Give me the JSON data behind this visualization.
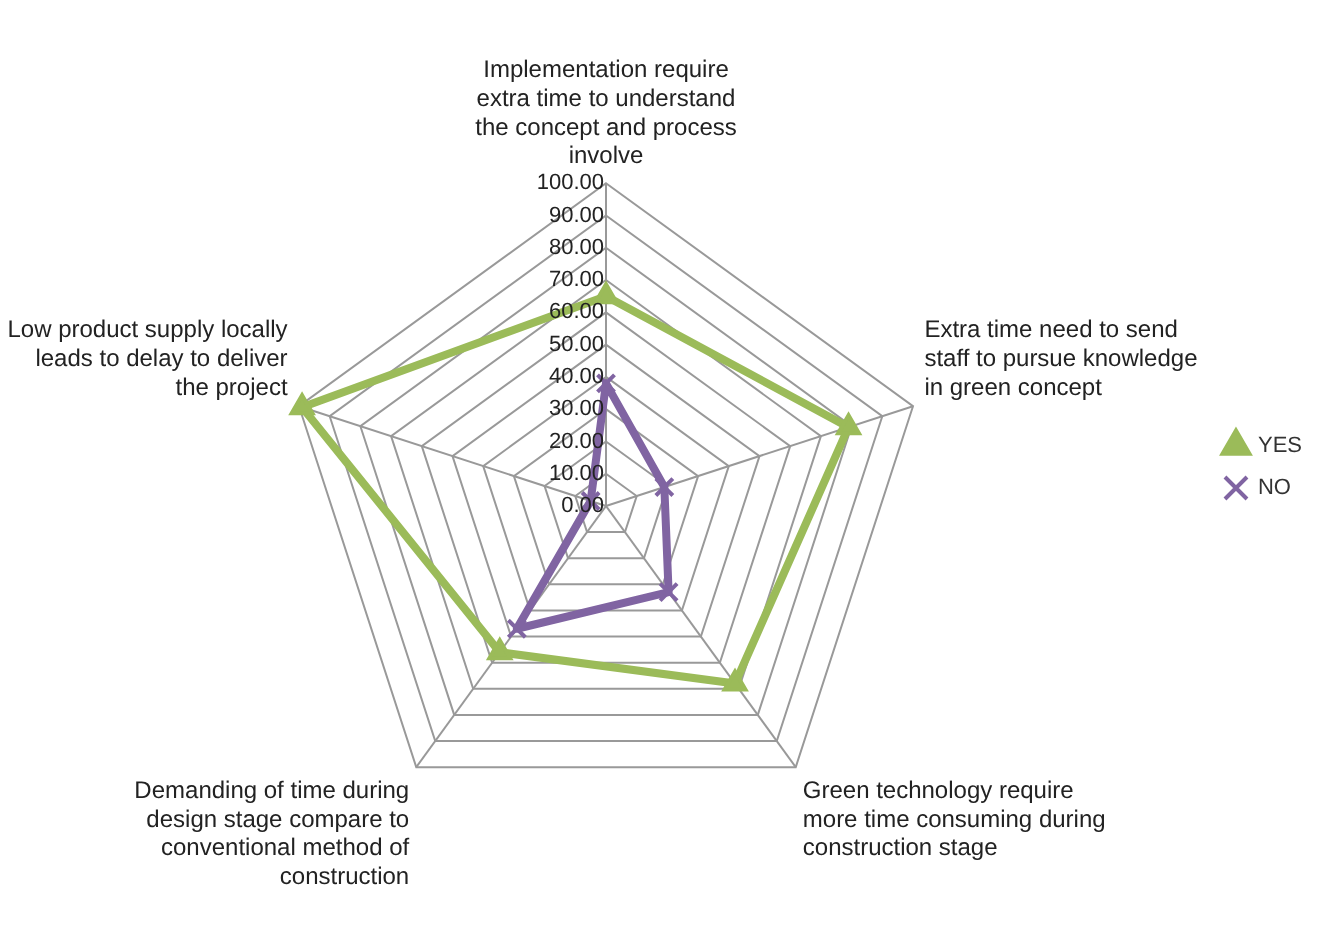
{
  "chart_data": {
    "type": "radar",
    "categories": [
      "Implementation require extra time to understand the concept and process involve",
      "Extra time need to send staff to pursue knowledge in green concept",
      "Green technology require more time consuming during construction stage",
      "Demanding of time during design stage compare to conventional method of construction",
      "Low product supply locally leads to delay to deliver the project"
    ],
    "series": [
      {
        "name": "YES",
        "color": "#9bbb59",
        "marker": "triangle",
        "values": [
          65,
          79,
          68,
          56,
          99
        ]
      },
      {
        "name": "NO",
        "color": "#8064a2",
        "marker": "cross",
        "values": [
          38,
          19,
          33,
          47,
          5
        ]
      }
    ],
    "ylim": [
      0,
      100
    ],
    "yticks": [
      {
        "value": 0,
        "label": "0.00"
      },
      {
        "value": 10,
        "label": "10.00"
      },
      {
        "value": 20,
        "label": "20.00"
      },
      {
        "value": 30,
        "label": "30.00"
      },
      {
        "value": 40,
        "label": "40.00"
      },
      {
        "value": 50,
        "label": "50.00"
      },
      {
        "value": 60,
        "label": "60.00"
      },
      {
        "value": 70,
        "label": "70.00"
      },
      {
        "value": 80,
        "label": "80.00"
      },
      {
        "value": 90,
        "label": "90.00"
      },
      {
        "value": 100,
        "label": "100.00"
      }
    ],
    "grid": true,
    "legend": "right"
  }
}
